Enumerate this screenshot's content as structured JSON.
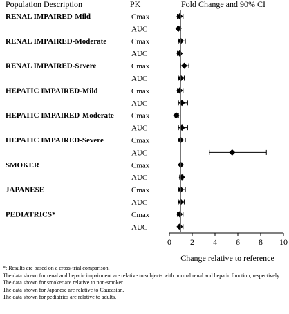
{
  "chart_data": {
    "type": "forest",
    "headers": {
      "population": "Population Description",
      "pk": "PK",
      "effect": "Fold Change and 90% CI"
    },
    "groups": [
      "RENAL IMPAIRED-Mild",
      "RENAL IMPAIRED-Moderate",
      "RENAL IMPAIRED-Severe",
      "HEPATIC IMPAIRED-Mild",
      "HEPATIC IMPAIRED-Moderate",
      "HEPATIC IMPAIRED-Severe",
      "SMOKER",
      "JAPANESE",
      "PEDIATRICS*"
    ],
    "rows": [
      {
        "pk": "Cmax",
        "estimate": 0.9,
        "lower": 0.7,
        "upper": 1.2
      },
      {
        "pk": "AUC",
        "estimate": 0.8,
        "lower": 0.7,
        "upper": 1.0
      },
      {
        "pk": "Cmax",
        "estimate": 1.0,
        "lower": 0.8,
        "upper": 1.4
      },
      {
        "pk": "AUC",
        "estimate": 0.9,
        "lower": 0.7,
        "upper": 1.0
      },
      {
        "pk": "Cmax",
        "estimate": 1.3,
        "lower": 1.0,
        "upper": 1.7
      },
      {
        "pk": "AUC",
        "estimate": 1.0,
        "lower": 0.8,
        "upper": 1.3
      },
      {
        "pk": "Cmax",
        "estimate": 0.9,
        "lower": 0.7,
        "upper": 1.2
      },
      {
        "pk": "AUC",
        "estimate": 1.1,
        "lower": 0.8,
        "upper": 1.6
      },
      {
        "pk": "Cmax",
        "estimate": 0.6,
        "lower": 0.5,
        "upper": 0.8
      },
      {
        "pk": "AUC",
        "estimate": 1.1,
        "lower": 0.8,
        "upper": 1.6
      },
      {
        "pk": "Cmax",
        "estimate": 1.0,
        "lower": 0.8,
        "upper": 1.4
      },
      {
        "pk": "AUC",
        "estimate": 5.5,
        "lower": 3.5,
        "upper": 8.5
      },
      {
        "pk": "Cmax",
        "estimate": 1.0,
        "lower": 0.9,
        "upper": 1.1
      },
      {
        "pk": "AUC",
        "estimate": 1.1,
        "lower": 0.9,
        "upper": 1.2
      },
      {
        "pk": "Cmax",
        "estimate": 1.0,
        "lower": 0.8,
        "upper": 1.4
      },
      {
        "pk": "AUC",
        "estimate": 1.0,
        "lower": 0.8,
        "upper": 1.3
      },
      {
        "pk": "Cmax",
        "estimate": 0.9,
        "lower": 0.7,
        "upper": 1.2
      },
      {
        "pk": "AUC",
        "estimate": 0.9,
        "lower": 0.8,
        "upper": 1.2
      }
    ],
    "reference_line": 1,
    "xlim": [
      0,
      10
    ],
    "xticks": [
      0,
      2,
      4,
      6,
      8,
      10
    ],
    "xlabel": "Change relative to reference",
    "grid": false
  },
  "footnotes": [
    "*: Results are based on a cross-trial comparison.",
    "The data shown for renal and hepatic impairment are relative to subjects with normal renal and hepatic function, respectively.",
    "The data shown for smoker are relative to non-smoker.",
    "The data shown for Japanese are relative to Caucasian.",
    "The data shown for pediatrics are relative to adults."
  ]
}
